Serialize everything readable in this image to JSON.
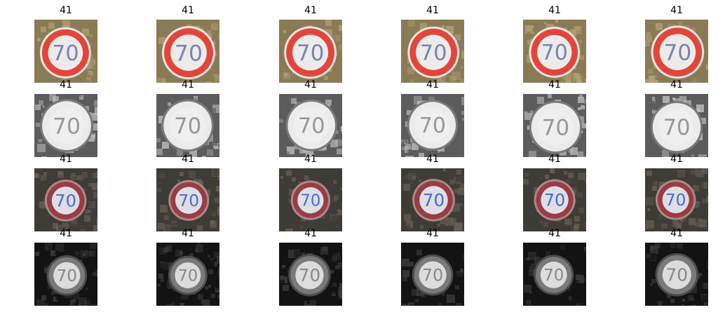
{
  "rows": [
    {
      "style": "color-bright",
      "cells": [
        {
          "label": "41",
          "sign_text": "70"
        },
        {
          "label": "41",
          "sign_text": "70"
        },
        {
          "label": "41",
          "sign_text": "70"
        },
        {
          "label": "41",
          "sign_text": "70"
        },
        {
          "label": "41",
          "sign_text": "70"
        },
        {
          "label": "41",
          "sign_text": "70"
        }
      ]
    },
    {
      "style": "gray-bright",
      "cells": [
        {
          "label": "41",
          "sign_text": "70"
        },
        {
          "label": "41",
          "sign_text": "70"
        },
        {
          "label": "41",
          "sign_text": "70"
        },
        {
          "label": "41",
          "sign_text": "70"
        },
        {
          "label": "41",
          "sign_text": "70"
        },
        {
          "label": "41",
          "sign_text": "70"
        }
      ]
    },
    {
      "style": "color-dark",
      "cells": [
        {
          "label": "41",
          "sign_text": "70"
        },
        {
          "label": "41",
          "sign_text": "70"
        },
        {
          "label": "41",
          "sign_text": "70"
        },
        {
          "label": "41",
          "sign_text": "70"
        },
        {
          "label": "41",
          "sign_text": "70"
        },
        {
          "label": "41",
          "sign_text": "70"
        }
      ]
    },
    {
      "style": "gray-dark",
      "cells": [
        {
          "label": "41",
          "sign_text": "70"
        },
        {
          "label": "41",
          "sign_text": "70"
        },
        {
          "label": "41",
          "sign_text": "70"
        },
        {
          "label": "41",
          "sign_text": "70"
        },
        {
          "label": "41",
          "sign_text": "70"
        },
        {
          "label": "41",
          "sign_text": "70"
        }
      ]
    }
  ],
  "palette": {
    "color-bright": {
      "bg": "#8a7d55",
      "bg2": "#b8a87a",
      "ring": "#e8453a",
      "face": "#f4f4f4",
      "digits": "#7a86b0",
      "rim": "#f0ecec"
    },
    "gray-bright": {
      "bg": "#5a5a5a",
      "bg2": "#c8c8c8",
      "ring": "#f2f2f2",
      "face": "#f6f6f6",
      "digits": "#9a9a9a",
      "rim": "#7a7a7a"
    },
    "color-dark": {
      "bg": "#3a3a36",
      "bg2": "#6a6258",
      "ring": "#9a3a44",
      "face": "#e6e6ee",
      "digits": "#3f6fd6",
      "rim": "#b08a8a"
    },
    "gray-dark": {
      "bg": "#0c0c0c",
      "bg2": "#3a3a3a",
      "ring": "#7a7a7a",
      "face": "#e2e2e2",
      "digits": "#8a8a8a",
      "rim": "#4a4a4a"
    }
  }
}
